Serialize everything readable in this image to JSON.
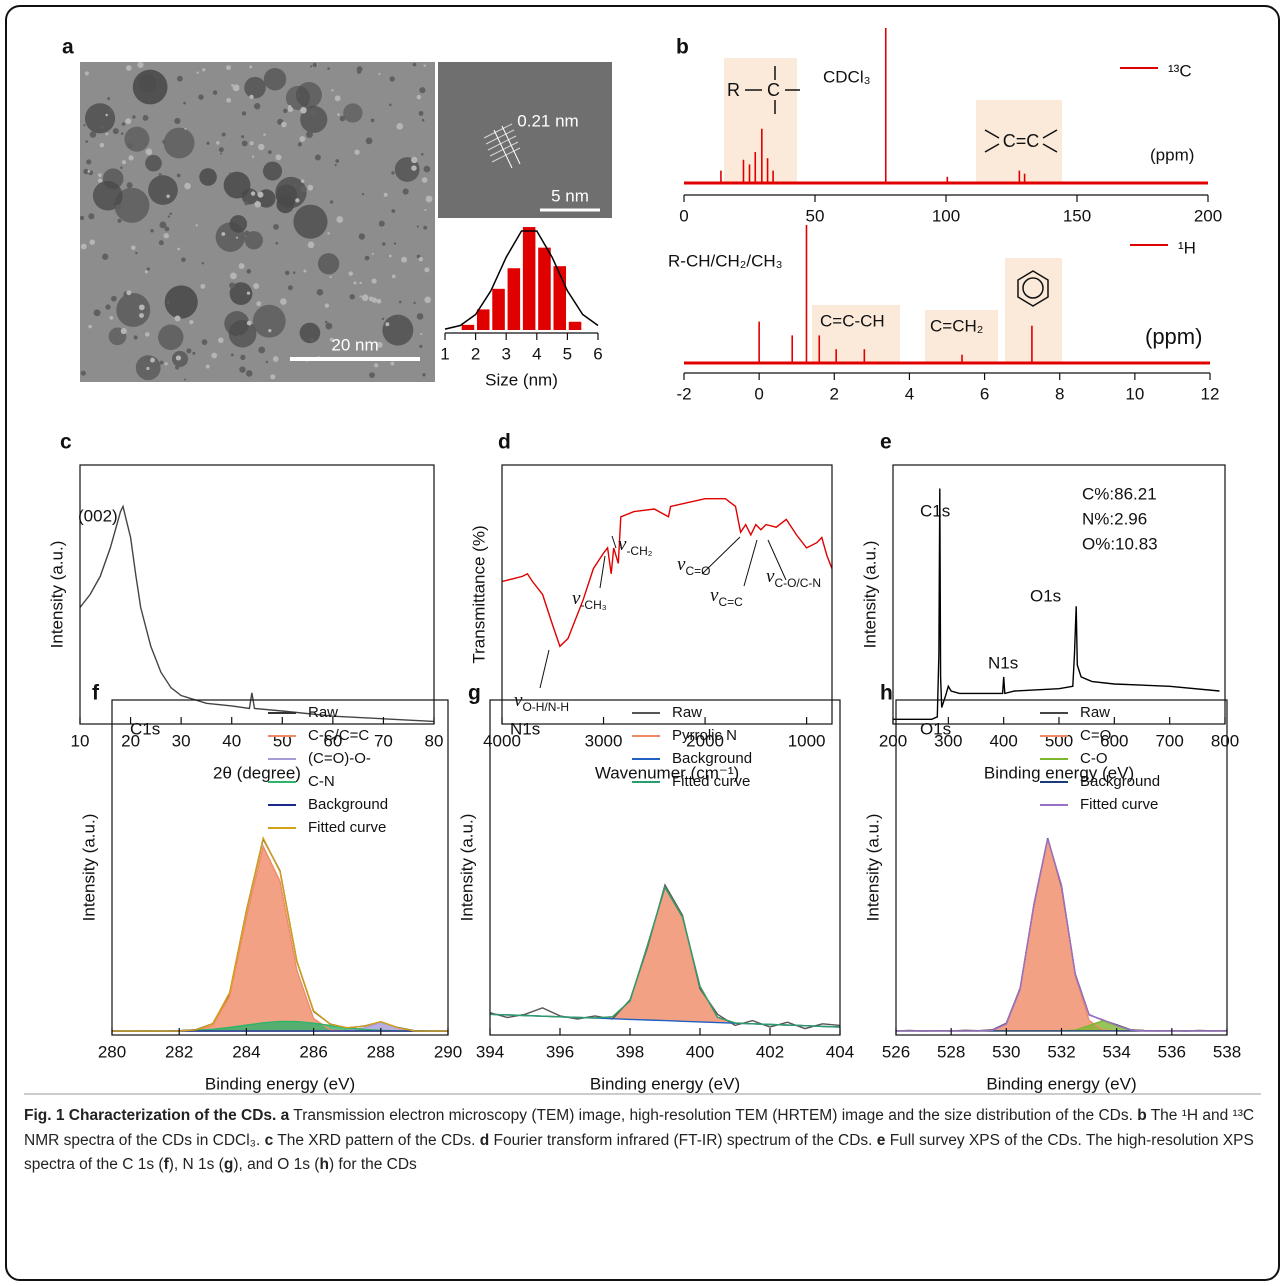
{
  "chart_data": [
    {
      "label": "a",
      "type": "histogram",
      "image_labels": {
        "scale_bar": "20 nm",
        "lattice": "0.21 nm",
        "hr_scale_bar": "5 nm"
      },
      "xlabel": "Size (nm)",
      "bins": [
        1.5,
        2,
        2.5,
        3,
        3.5,
        4,
        4.5,
        5,
        5.5
      ],
      "counts": [
        0.05,
        0.2,
        0.4,
        0.6,
        1.0,
        0.8,
        0.62,
        0.08
      ],
      "color": "#e00000",
      "fit": {
        "x": [
          1,
          1.5,
          2,
          2.5,
          3,
          3.5,
          4,
          4.5,
          5,
          5.5,
          6
        ],
        "values": [
          0.009,
          0.044,
          0.151,
          0.381,
          0.707,
          0.962,
          0.962,
          0.707,
          0.381,
          0.151,
          0.044
        ],
        "color": "#000000"
      },
      "xlim": [
        1,
        6
      ],
      "xticks": [
        1,
        2,
        3,
        4,
        5,
        6
      ],
      "ylim": [
        0,
        1.02
      ]
    },
    {
      "label": "b",
      "type": "stick",
      "series": [
        {
          "name": "¹³C",
          "color": "#e00000",
          "x": [
            14.1,
            22.7,
            25,
            27.2,
            29.7,
            31.9,
            34,
            77,
            100.5,
            128,
            130
          ],
          "values": [
            0.08,
            0.15,
            0.12,
            0.2,
            0.35,
            0.16,
            0.08,
            1.0,
            0.04,
            0.08,
            0.06
          ]
        }
      ],
      "annotations": [
        "CDCl₃",
        "R",
        "C",
        "C=C",
        "(ppm)"
      ],
      "xlim": [
        0,
        200
      ],
      "xticks": [
        0,
        50,
        100,
        150,
        200
      ],
      "ylim": [
        0,
        1
      ]
    },
    {
      "type": "stick",
      "series": [
        {
          "name": "¹H",
          "color": "#e00000",
          "x": [
            0,
            0.88,
            1.26,
            1.6,
            2.05,
            2.8,
            5.4,
            7.26
          ],
          "values": [
            0.3,
            0.2,
            1.0,
            0.2,
            0.1,
            0.1,
            0.06,
            0.27
          ]
        }
      ],
      "annotations": [
        "R-CH/CH₂/CH₃",
        "C=C-CH",
        "C=CH₂",
        "(ppm)"
      ],
      "xlim": [
        -2,
        12
      ],
      "xticks": [
        -2,
        0,
        2,
        4,
        6,
        8,
        10,
        12
      ],
      "ylim": [
        0,
        1
      ]
    },
    {
      "label": "c",
      "type": "line",
      "xlabel": "2θ (degree)",
      "ylabel": "Intensity (a.u.)",
      "x": [
        10,
        12,
        14,
        16,
        17,
        18,
        18.5,
        19,
        20,
        21,
        22,
        24,
        26,
        28,
        30,
        35,
        40,
        43.5,
        44,
        44.5,
        50,
        60,
        70,
        80
      ],
      "series": [
        {
          "color": "#444444",
          "values": [
            0.45,
            0.5,
            0.57,
            0.68,
            0.75,
            0.82,
            0.84,
            0.8,
            0.72,
            0.58,
            0.45,
            0.3,
            0.2,
            0.14,
            0.11,
            0.08,
            0.07,
            0.06,
            0.12,
            0.06,
            0.05,
            0.03,
            0.02,
            0.01
          ]
        }
      ],
      "annotations": [
        "(002)"
      ],
      "xlim": [
        10,
        80
      ],
      "xticks": [
        10,
        20,
        30,
        40,
        50,
        60,
        70,
        80
      ],
      "ylim": [
        0,
        1
      ]
    },
    {
      "label": "d",
      "type": "line",
      "xlabel": "Wavenumer (cm⁻¹)",
      "ylabel": "Transmittance (%)",
      "x": [
        4000,
        3800,
        3750,
        3700,
        3600,
        3500,
        3430,
        3350,
        3200,
        3100,
        3000,
        2960,
        2925,
        2900,
        2855,
        2830,
        2700,
        2500,
        2360,
        2340,
        2000,
        1800,
        1700,
        1650,
        1600,
        1550,
        1500,
        1450,
        1400,
        1300,
        1200,
        1100,
        1000,
        900,
        850,
        800,
        750
      ],
      "series": [
        {
          "color": "#e00000",
          "values": [
            0.55,
            0.57,
            0.58,
            0.55,
            0.5,
            0.38,
            0.3,
            0.33,
            0.48,
            0.6,
            0.66,
            0.68,
            0.58,
            0.68,
            0.62,
            0.8,
            0.82,
            0.83,
            0.8,
            0.84,
            0.87,
            0.87,
            0.84,
            0.74,
            0.77,
            0.73,
            0.77,
            0.75,
            0.77,
            0.76,
            0.79,
            0.73,
            0.68,
            0.7,
            0.72,
            0.65,
            0.6
          ]
        }
      ],
      "annotations": [
        {
          "symbol": "ν",
          "sub": "O-H/N-H"
        },
        {
          "symbol": "ν",
          "sub": "-CH₃"
        },
        {
          "symbol": "ν",
          "sub": "-CH₂"
        },
        {
          "symbol": "ν",
          "sub": "C=O"
        },
        {
          "symbol": "ν",
          "sub": "C=C"
        },
        {
          "symbol": "ν",
          "sub": "C-O/C-N"
        }
      ],
      "xlim": [
        4000,
        750
      ],
      "xticks": [
        4000,
        3000,
        2000,
        1000
      ],
      "ylim": [
        0,
        1
      ]
    },
    {
      "label": "e",
      "type": "line",
      "xlabel": "Binding energy (eV)",
      "ylabel": "Intensity (a.u.)",
      "x": [
        200,
        270,
        280,
        283,
        284.6,
        286,
        288,
        295,
        300,
        305,
        320,
        350,
        390,
        398,
        400,
        402,
        420,
        500,
        525,
        528,
        531,
        533,
        540,
        550,
        560,
        600,
        700,
        790
      ],
      "series": [
        {
          "color": "#000000",
          "values": [
            0.02,
            0.02,
            0.03,
            0.3,
            1.0,
            0.2,
            0.07,
            0.12,
            0.16,
            0.14,
            0.13,
            0.13,
            0.13,
            0.13,
            0.2,
            0.13,
            0.14,
            0.15,
            0.16,
            0.3,
            0.5,
            0.25,
            0.2,
            0.19,
            0.18,
            0.17,
            0.16,
            0.14
          ]
        }
      ],
      "annotations": [
        "C1s",
        "N1s",
        "O1s",
        "C%:86.21",
        "N%:2.96",
        "O%:10.83"
      ],
      "xlim": [
        200,
        800
      ],
      "xticks": [
        200,
        300,
        400,
        500,
        600,
        700,
        800
      ],
      "ylim": [
        0,
        1.1
      ]
    },
    {
      "label": "f",
      "type": "line",
      "xlabel": "Binding energy (eV)",
      "ylabel": "Intensity (a.u.)",
      "legend": true,
      "x": [
        280,
        280.5,
        281,
        281.5,
        282,
        282.5,
        283,
        283.5,
        284,
        284.5,
        285,
        285.5,
        286,
        286.5,
        287,
        287.5,
        288,
        288.5,
        289,
        289.5,
        290
      ],
      "series": [
        {
          "name": "Raw",
          "color": "#333333",
          "values": [
            0.021,
            0.02,
            0.021,
            0.02,
            0.022,
            0.027,
            0.058,
            0.21,
            0.63,
            0.995,
            0.832,
            0.375,
            0.12,
            0.055,
            0.036,
            0.045,
            0.066,
            0.038,
            0.022,
            0.021,
            0.02
          ]
        },
        {
          "name": "C-C/C=C",
          "color": "#f08a66",
          "fill": true,
          "values": [
            0.02,
            0.02,
            0.02,
            0.02,
            0.02,
            0.022,
            0.048,
            0.197,
            0.597,
            0.957,
            0.78,
            0.329,
            0.083,
            0.026,
            0.02,
            0.02,
            0.02,
            0.02,
            0.02,
            0.02,
            0.02
          ]
        },
        {
          "name": "(C=O)-O-",
          "color": "#a59bd8",
          "fill": true,
          "values": [
            0.02,
            0.02,
            0.02,
            0.02,
            0.02,
            0.02,
            0.02,
            0.02,
            0.02,
            0.02,
            0.02,
            0.02,
            0.02,
            0.02,
            0.021,
            0.036,
            0.065,
            0.036,
            0.021,
            0.02,
            0.02
          ]
        },
        {
          "name": "C-N",
          "color": "#2db36a",
          "fill": true,
          "values": [
            0.02,
            0.02,
            0.02,
            0.02,
            0.021,
            0.024,
            0.029,
            0.038,
            0.05,
            0.062,
            0.069,
            0.068,
            0.06,
            0.048,
            0.036,
            0.028,
            0.023,
            0.021,
            0.02,
            0.02,
            0.02
          ]
        },
        {
          "name": "Background",
          "color": "#1a2a8a",
          "values": [
            0.02,
            0.02,
            0.02,
            0.02,
            0.02,
            0.02,
            0.02,
            0.02,
            0.02,
            0.02,
            0.02,
            0.02,
            0.02,
            0.02,
            0.02,
            0.02,
            0.02,
            0.02,
            0.02,
            0.02,
            0.02
          ]
        },
        {
          "name": "Fitted curve",
          "color": "#d4a017",
          "values": [
            0.02,
            0.02,
            0.02,
            0.02,
            0.021,
            0.026,
            0.057,
            0.215,
            0.627,
            0.999,
            0.829,
            0.377,
            0.123,
            0.054,
            0.037,
            0.044,
            0.068,
            0.037,
            0.021,
            0.02,
            0.02
          ]
        }
      ],
      "annotations": [
        "C1s"
      ],
      "xlim": [
        280,
        290
      ],
      "xticks": [
        280,
        282,
        284,
        286,
        288,
        290
      ],
      "ylim": [
        0,
        1.7
      ]
    },
    {
      "label": "g",
      "type": "line",
      "xlabel": "Binding energy (eV)",
      "ylabel": "Intensity (a.u.)",
      "legend": true,
      "x": [
        394,
        394.5,
        395,
        395.5,
        396,
        396.5,
        397,
        397.5,
        398,
        398.5,
        399,
        399.5,
        400,
        400.5,
        401,
        401.5,
        402,
        402.5,
        403,
        403.5,
        404
      ],
      "series": [
        {
          "name": "Raw",
          "color": "#555555",
          "values": [
            0.14,
            0.11,
            0.13,
            0.17,
            0.12,
            0.1,
            0.12,
            0.1,
            0.22,
            0.55,
            0.94,
            0.75,
            0.29,
            0.13,
            0.06,
            0.09,
            0.05,
            0.08,
            0.04,
            0.07,
            0.06
          ]
        },
        {
          "name": "Pyrrolic N",
          "color": "#f08a66",
          "fill": true,
          "values": [
            0.13,
            0.126,
            0.122,
            0.118,
            0.114,
            0.11,
            0.107,
            0.114,
            0.213,
            0.563,
            0.926,
            0.739,
            0.305,
            0.111,
            0.076,
            0.07,
            0.066,
            0.062,
            0.058,
            0.054,
            0.05
          ]
        },
        {
          "name": "Background",
          "color": "#2060c0",
          "values": [
            0.13,
            0.126,
            0.122,
            0.118,
            0.114,
            0.11,
            0.106,
            0.102,
            0.098,
            0.094,
            0.09,
            0.086,
            0.082,
            0.078,
            0.074,
            0.07,
            0.066,
            0.062,
            0.058,
            0.054,
            0.05
          ]
        },
        {
          "name": "Fitted curve",
          "color": "#2a9d6a",
          "values": [
            0.13,
            0.126,
            0.122,
            0.118,
            0.114,
            0.11,
            0.107,
            0.114,
            0.213,
            0.563,
            0.926,
            0.739,
            0.305,
            0.111,
            0.076,
            0.07,
            0.066,
            0.062,
            0.058,
            0.054,
            0.05
          ]
        }
      ],
      "annotations": [
        "N1s"
      ],
      "xlim": [
        394,
        404
      ],
      "xticks": [
        394,
        396,
        398,
        400,
        402,
        404
      ],
      "ylim": [
        0,
        2.1
      ]
    },
    {
      "label": "h",
      "type": "line",
      "xlabel": "Binding energy (eV)",
      "ylabel": "Intensity (a.u.)",
      "legend": true,
      "x": [
        526,
        526.5,
        527,
        527.5,
        528,
        528.5,
        529,
        529.5,
        530,
        530.5,
        531,
        531.5,
        532,
        532.5,
        533,
        533.5,
        534,
        534.5,
        535,
        535.5,
        536,
        536.5,
        537,
        537.5,
        538
      ],
      "series": [
        {
          "name": "Raw",
          "color": "#444444",
          "values": [
            0.02,
            0.022,
            0.019,
            0.021,
            0.02,
            0.023,
            0.021,
            0.026,
            0.058,
            0.23,
            0.64,
            0.97,
            0.73,
            0.3,
            0.1,
            0.073,
            0.05,
            0.026,
            0.022,
            0.02,
            0.021,
            0.019,
            0.022,
            0.02,
            0.021
          ]
        },
        {
          "name": "C=O",
          "color": "#f08a66",
          "fill": true,
          "values": [
            0.02,
            0.02,
            0.02,
            0.02,
            0.02,
            0.02,
            0.02,
            0.023,
            0.054,
            0.225,
            0.644,
            0.967,
            0.737,
            0.292,
            0.071,
            0.025,
            0.02,
            0.02,
            0.02,
            0.02,
            0.02,
            0.02,
            0.02,
            0.02,
            0.02
          ]
        },
        {
          "name": "C-O",
          "color": "#7cb82f",
          "fill": true,
          "values": [
            0.02,
            0.02,
            0.02,
            0.02,
            0.02,
            0.02,
            0.02,
            0.02,
            0.02,
            0.02,
            0.02,
            0.02,
            0.02,
            0.024,
            0.047,
            0.07,
            0.047,
            0.024,
            0.02,
            0.02,
            0.02,
            0.02,
            0.02,
            0.02,
            0.02
          ]
        },
        {
          "name": "Background",
          "color": "#1a3a7a",
          "values": [
            0.02,
            0.02,
            0.02,
            0.02,
            0.02,
            0.02,
            0.02,
            0.02,
            0.02,
            0.02,
            0.02,
            0.02,
            0.02,
            0.02,
            0.02,
            0.02,
            0.02,
            0.02,
            0.02,
            0.02,
            0.02,
            0.02,
            0.02,
            0.02,
            0.02
          ]
        },
        {
          "name": "Fitted curve",
          "color": "#9a6fc8",
          "values": [
            0.02,
            0.02,
            0.02,
            0.02,
            0.02,
            0.02,
            0.02,
            0.023,
            0.054,
            0.225,
            0.644,
            0.967,
            0.737,
            0.296,
            0.098,
            0.075,
            0.047,
            0.024,
            0.02,
            0.02,
            0.02,
            0.02,
            0.02,
            0.02,
            0.02
          ]
        }
      ],
      "annotations": [
        "O1s"
      ],
      "xlim": [
        526,
        538
      ],
      "xticks": [
        526,
        528,
        530,
        532,
        534,
        536,
        538
      ],
      "ylim": [
        0,
        1.65
      ]
    }
  ],
  "caption": {
    "runs": [
      {
        "text": "Fig. 1 Characterization of the CDs. a",
        "bold": true
      },
      {
        "text": " Transmission electron microscopy (TEM) image, high-resolution TEM (HRTEM) image and the size distribution of the CDs. ",
        "bold": false
      },
      {
        "text": "b",
        "bold": true
      },
      {
        "text": " The ¹H and ¹³C NMR spectra of the CDs in CDCl₃. ",
        "bold": false
      },
      {
        "text": "c",
        "bold": true
      },
      {
        "text": " The XRD pattern of the CDs. ",
        "bold": false
      },
      {
        "text": "d",
        "bold": true
      },
      {
        "text": " Fourier transform infrared (FT-IR) spectrum of the CDs. ",
        "bold": false
      },
      {
        "text": "e",
        "bold": true
      },
      {
        "text": " Full survey XPS of the CDs. The high-resolution XPS spectra of the C 1s (",
        "bold": false
      },
      {
        "text": "f",
        "bold": true
      },
      {
        "text": "), N 1s (",
        "bold": false
      },
      {
        "text": "g",
        "bold": true
      },
      {
        "text": "), and O 1s (",
        "bold": false
      },
      {
        "text": "h",
        "bold": true
      },
      {
        "text": ") for the CDs",
        "bold": false
      }
    ]
  }
}
